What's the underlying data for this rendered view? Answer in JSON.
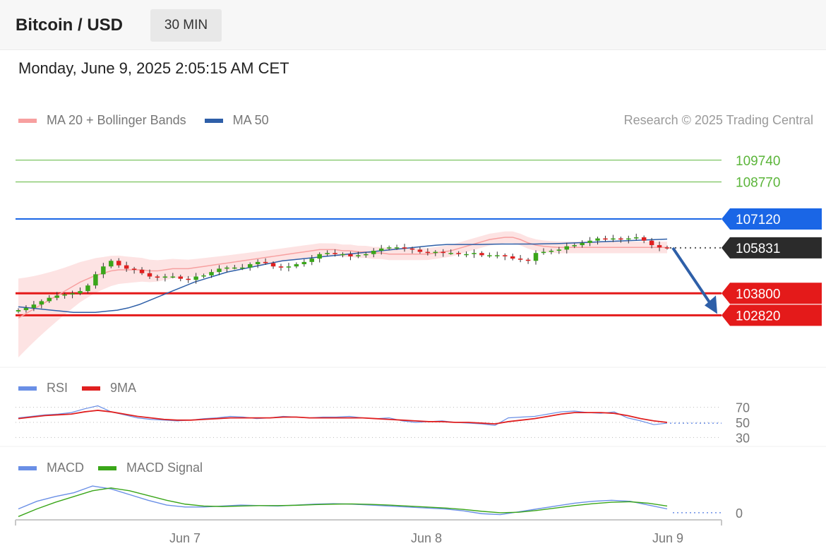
{
  "header": {
    "title": "Bitcoin / USD",
    "timeframe": "30 MIN",
    "timestamp": "Monday, June 9, 2025 2:05:15 AM CET"
  },
  "legend": {
    "ma20_label": "MA 20 + Bollinger Bands",
    "ma20_color": "#f7a0a0",
    "ma50_label": "MA 50",
    "ma50_color": "#2e5fa8",
    "copyright": "Research © 2025 Trading Central"
  },
  "rsi_legend": {
    "rsi_label": "RSI",
    "rsi_color": "#6a8fe6",
    "ma_label": "9MA",
    "ma_color": "#e02020"
  },
  "macd_legend": {
    "macd_label": "MACD",
    "macd_color": "#6a8fe6",
    "signal_label": "MACD Signal",
    "signal_color": "#3aa619"
  },
  "chart_data": [
    {
      "type": "candlestick",
      "title": "Bitcoin / USD",
      "ylim": [
        100500,
        110900
      ],
      "x_ticks": [
        "Jun 7",
        "Jun 8",
        "Jun 9"
      ],
      "last_price": 105831,
      "levels": [
        {
          "value": 109740,
          "label": "109740",
          "role": "target",
          "color": "#5bb53a"
        },
        {
          "value": 108770,
          "label": "108770",
          "role": "target",
          "color": "#5bb53a"
        },
        {
          "value": 107120,
          "label": "107120",
          "role": "pivot",
          "color": "#1a66e6"
        },
        {
          "value": 105831,
          "label": "105831",
          "role": "last",
          "color": "#2b2b2b"
        },
        {
          "value": 103800,
          "label": "103800",
          "role": "support",
          "color": "#e41a1a"
        },
        {
          "value": 102820,
          "label": "102820",
          "role": "support",
          "color": "#e41a1a"
        }
      ],
      "forecast_arrow": {
        "from": 105831,
        "to": 102820,
        "color": "#2e5fa8"
      },
      "close_series": [
        103050,
        103150,
        103300,
        103450,
        103600,
        103700,
        103750,
        103800,
        103900,
        104150,
        104650,
        105000,
        105250,
        105050,
        104900,
        104850,
        104700,
        104550,
        104500,
        104550,
        104550,
        104450,
        104400,
        104550,
        104600,
        104750,
        104900,
        104950,
        104950,
        104950,
        105100,
        105200,
        105150,
        105000,
        104950,
        105000,
        105100,
        105200,
        105350,
        105550,
        105600,
        105550,
        105550,
        105450,
        105500,
        105550,
        105700,
        105800,
        105850,
        105850,
        105800,
        105750,
        105650,
        105600,
        105650,
        105600,
        105600,
        105550,
        105550,
        105600,
        105500,
        105500,
        105500,
        105450,
        105350,
        105300,
        105250,
        105600,
        105650,
        105700,
        105750,
        105900,
        105950,
        106050,
        106150,
        106250,
        106200,
        106250,
        106200,
        106250,
        106300,
        106150,
        105950,
        105850,
        105831
      ],
      "ma20_series": [
        102700,
        102900,
        103100,
        103300,
        103500,
        103700,
        103900,
        104100,
        104300,
        104450,
        104600,
        104700,
        104800,
        104850,
        104850,
        104850,
        104850,
        104800,
        104800,
        104850,
        104900,
        104900,
        104900,
        104950,
        105000,
        105050,
        105100,
        105150,
        105200,
        105250,
        105300,
        105350,
        105400,
        105450,
        105500,
        105550,
        105600,
        105650,
        105700,
        105750,
        105750,
        105750,
        105700,
        105700,
        105650,
        105650,
        105600,
        105600,
        105550,
        105550,
        105550,
        105550,
        105550,
        105550,
        105600,
        105650,
        105700,
        105800,
        105900,
        106000,
        106100,
        106200,
        106250,
        106300,
        106300,
        106200,
        106050,
        105950,
        105900,
        105870,
        105850,
        105850,
        105850,
        105850,
        105850,
        105850,
        105850,
        105850,
        105850,
        105850,
        105850,
        105850,
        105850,
        105850,
        105850
      ],
      "ma50_series": [
        103200,
        103150,
        103100,
        103050,
        103000,
        102950,
        102950,
        102950,
        103000,
        103050,
        103150,
        103300,
        103500,
        103700,
        103900,
        104100,
        104300,
        104450,
        104600,
        104750,
        104850,
        104950,
        105050,
        105150,
        105250,
        105300,
        105350,
        105400,
        105450,
        105500,
        105550,
        105600,
        105650,
        105700,
        105750,
        105800,
        105850,
        105900,
        105950,
        105980,
        105980,
        105980,
        105980,
        105990,
        106000,
        106000,
        106000,
        106000,
        106010,
        106020,
        106040,
        106060,
        106080,
        106100,
        106120,
        106140,
        106160,
        106180,
        106200,
        106220
      ],
      "ma20_color": "#f7a0a0",
      "ma50_color": "#2e5fa8",
      "up_color": "#3aa619",
      "down_color": "#e02020"
    },
    {
      "type": "line",
      "title": "RSI",
      "ylim": [
        20,
        80
      ],
      "y_ticks": [
        "70",
        "50",
        "30"
      ],
      "series": [
        {
          "name": "RSI",
          "values": [
            56,
            58,
            60,
            61,
            63,
            68,
            72,
            64,
            60,
            56,
            54,
            53,
            52,
            53,
            55,
            56,
            58,
            57,
            55,
            56,
            58,
            57,
            56,
            57,
            57,
            58,
            56,
            55,
            56,
            52,
            50,
            51,
            52,
            50,
            49,
            48,
            46,
            56,
            57,
            58,
            61,
            64,
            65,
            63,
            62,
            64,
            56,
            52,
            47,
            49
          ]
        },
        {
          "name": "9MA",
          "values": [
            55,
            57,
            59,
            60,
            61,
            64,
            66,
            64,
            61,
            58,
            56,
            54,
            53,
            53,
            54,
            55,
            56,
            56,
            56,
            56,
            57,
            57,
            56,
            56,
            56,
            56,
            56,
            55,
            54,
            53,
            52,
            51,
            51,
            50,
            50,
            49,
            48,
            51,
            53,
            55,
            58,
            61,
            63,
            63,
            63,
            62,
            59,
            55,
            52,
            50
          ]
        }
      ]
    },
    {
      "type": "line",
      "title": "MACD",
      "ylim": [
        -60,
        340
      ],
      "y_ticks": [
        "0"
      ],
      "x_ticks": [
        "Jun 7",
        "Jun 8",
        "Jun 9"
      ],
      "series": [
        {
          "name": "MACD",
          "values": [
            40,
            120,
            170,
            210,
            280,
            250,
            190,
            130,
            80,
            60,
            60,
            70,
            80,
            75,
            70,
            80,
            90,
            95,
            90,
            80,
            70,
            60,
            50,
            40,
            20,
            -10,
            -20,
            10,
            40,
            70,
            100,
            120,
            130,
            120,
            80,
            40
          ]
        },
        {
          "name": "MACD Signal",
          "values": [
            -40,
            40,
            110,
            170,
            230,
            260,
            230,
            180,
            130,
            90,
            70,
            65,
            70,
            75,
            75,
            78,
            85,
            90,
            92,
            88,
            80,
            70,
            60,
            50,
            35,
            15,
            0,
            5,
            25,
            50,
            75,
            95,
            110,
            115,
            100,
            70
          ]
        }
      ]
    }
  ]
}
